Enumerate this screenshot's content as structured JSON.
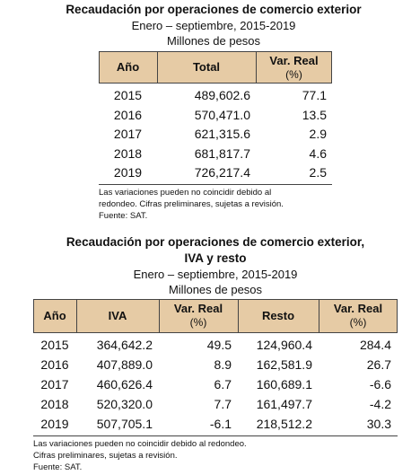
{
  "table1": {
    "title": [
      "Recaudación por operaciones de comercio exterior"
    ],
    "subtitle": "Enero – septiembre, 2015-2019",
    "units": "Millones de pesos",
    "header": [
      {
        "text": "Año"
      },
      {
        "text": "Total"
      },
      {
        "text": "Var. Real",
        "sub": "(%)"
      }
    ],
    "rows": [
      [
        "2015",
        "489,602.6",
        "77.1"
      ],
      [
        "2016",
        "570,471.0",
        "13.5"
      ],
      [
        "2017",
        "621,315.6",
        "2.9"
      ],
      [
        "2018",
        "681,817.7",
        "4.6"
      ],
      [
        "2019",
        "726,217.4",
        "2.5"
      ]
    ],
    "notes": [
      "Las variaciones pueden no coincidir debido al",
      "redondeo. Cifras preliminares, sujetas a revisión.",
      "Fuente: SAT."
    ]
  },
  "table2": {
    "title": [
      "Recaudación por operaciones de comercio exterior,",
      "IVA y resto"
    ],
    "subtitle": "Enero – septiembre, 2015-2019",
    "units": "Millones de pesos",
    "header": [
      {
        "text": "Año"
      },
      {
        "text": "IVA"
      },
      {
        "text": "Var. Real",
        "sub": "(%)"
      },
      {
        "text": "Resto"
      },
      {
        "text": "Var. Real",
        "sub": "(%)"
      }
    ],
    "rows": [
      [
        "2015",
        "364,642.2",
        "49.5",
        "124,960.4",
        "284.4"
      ],
      [
        "2016",
        "407,889.0",
        "8.9",
        "162,581.9",
        "26.7"
      ],
      [
        "2017",
        "460,626.4",
        "6.7",
        "160,689.1",
        "-6.6"
      ],
      [
        "2018",
        "520,320.0",
        "7.7",
        "161,497.7",
        "-4.2"
      ],
      [
        "2019",
        "507,705.1",
        "-6.1",
        "218,512.2",
        "30.3"
      ]
    ],
    "notes": [
      "Las variaciones pueden no coincidir debido al redondeo.",
      "Cifras preliminares, sujetas a revisión.",
      "Fuente: SAT."
    ]
  }
}
